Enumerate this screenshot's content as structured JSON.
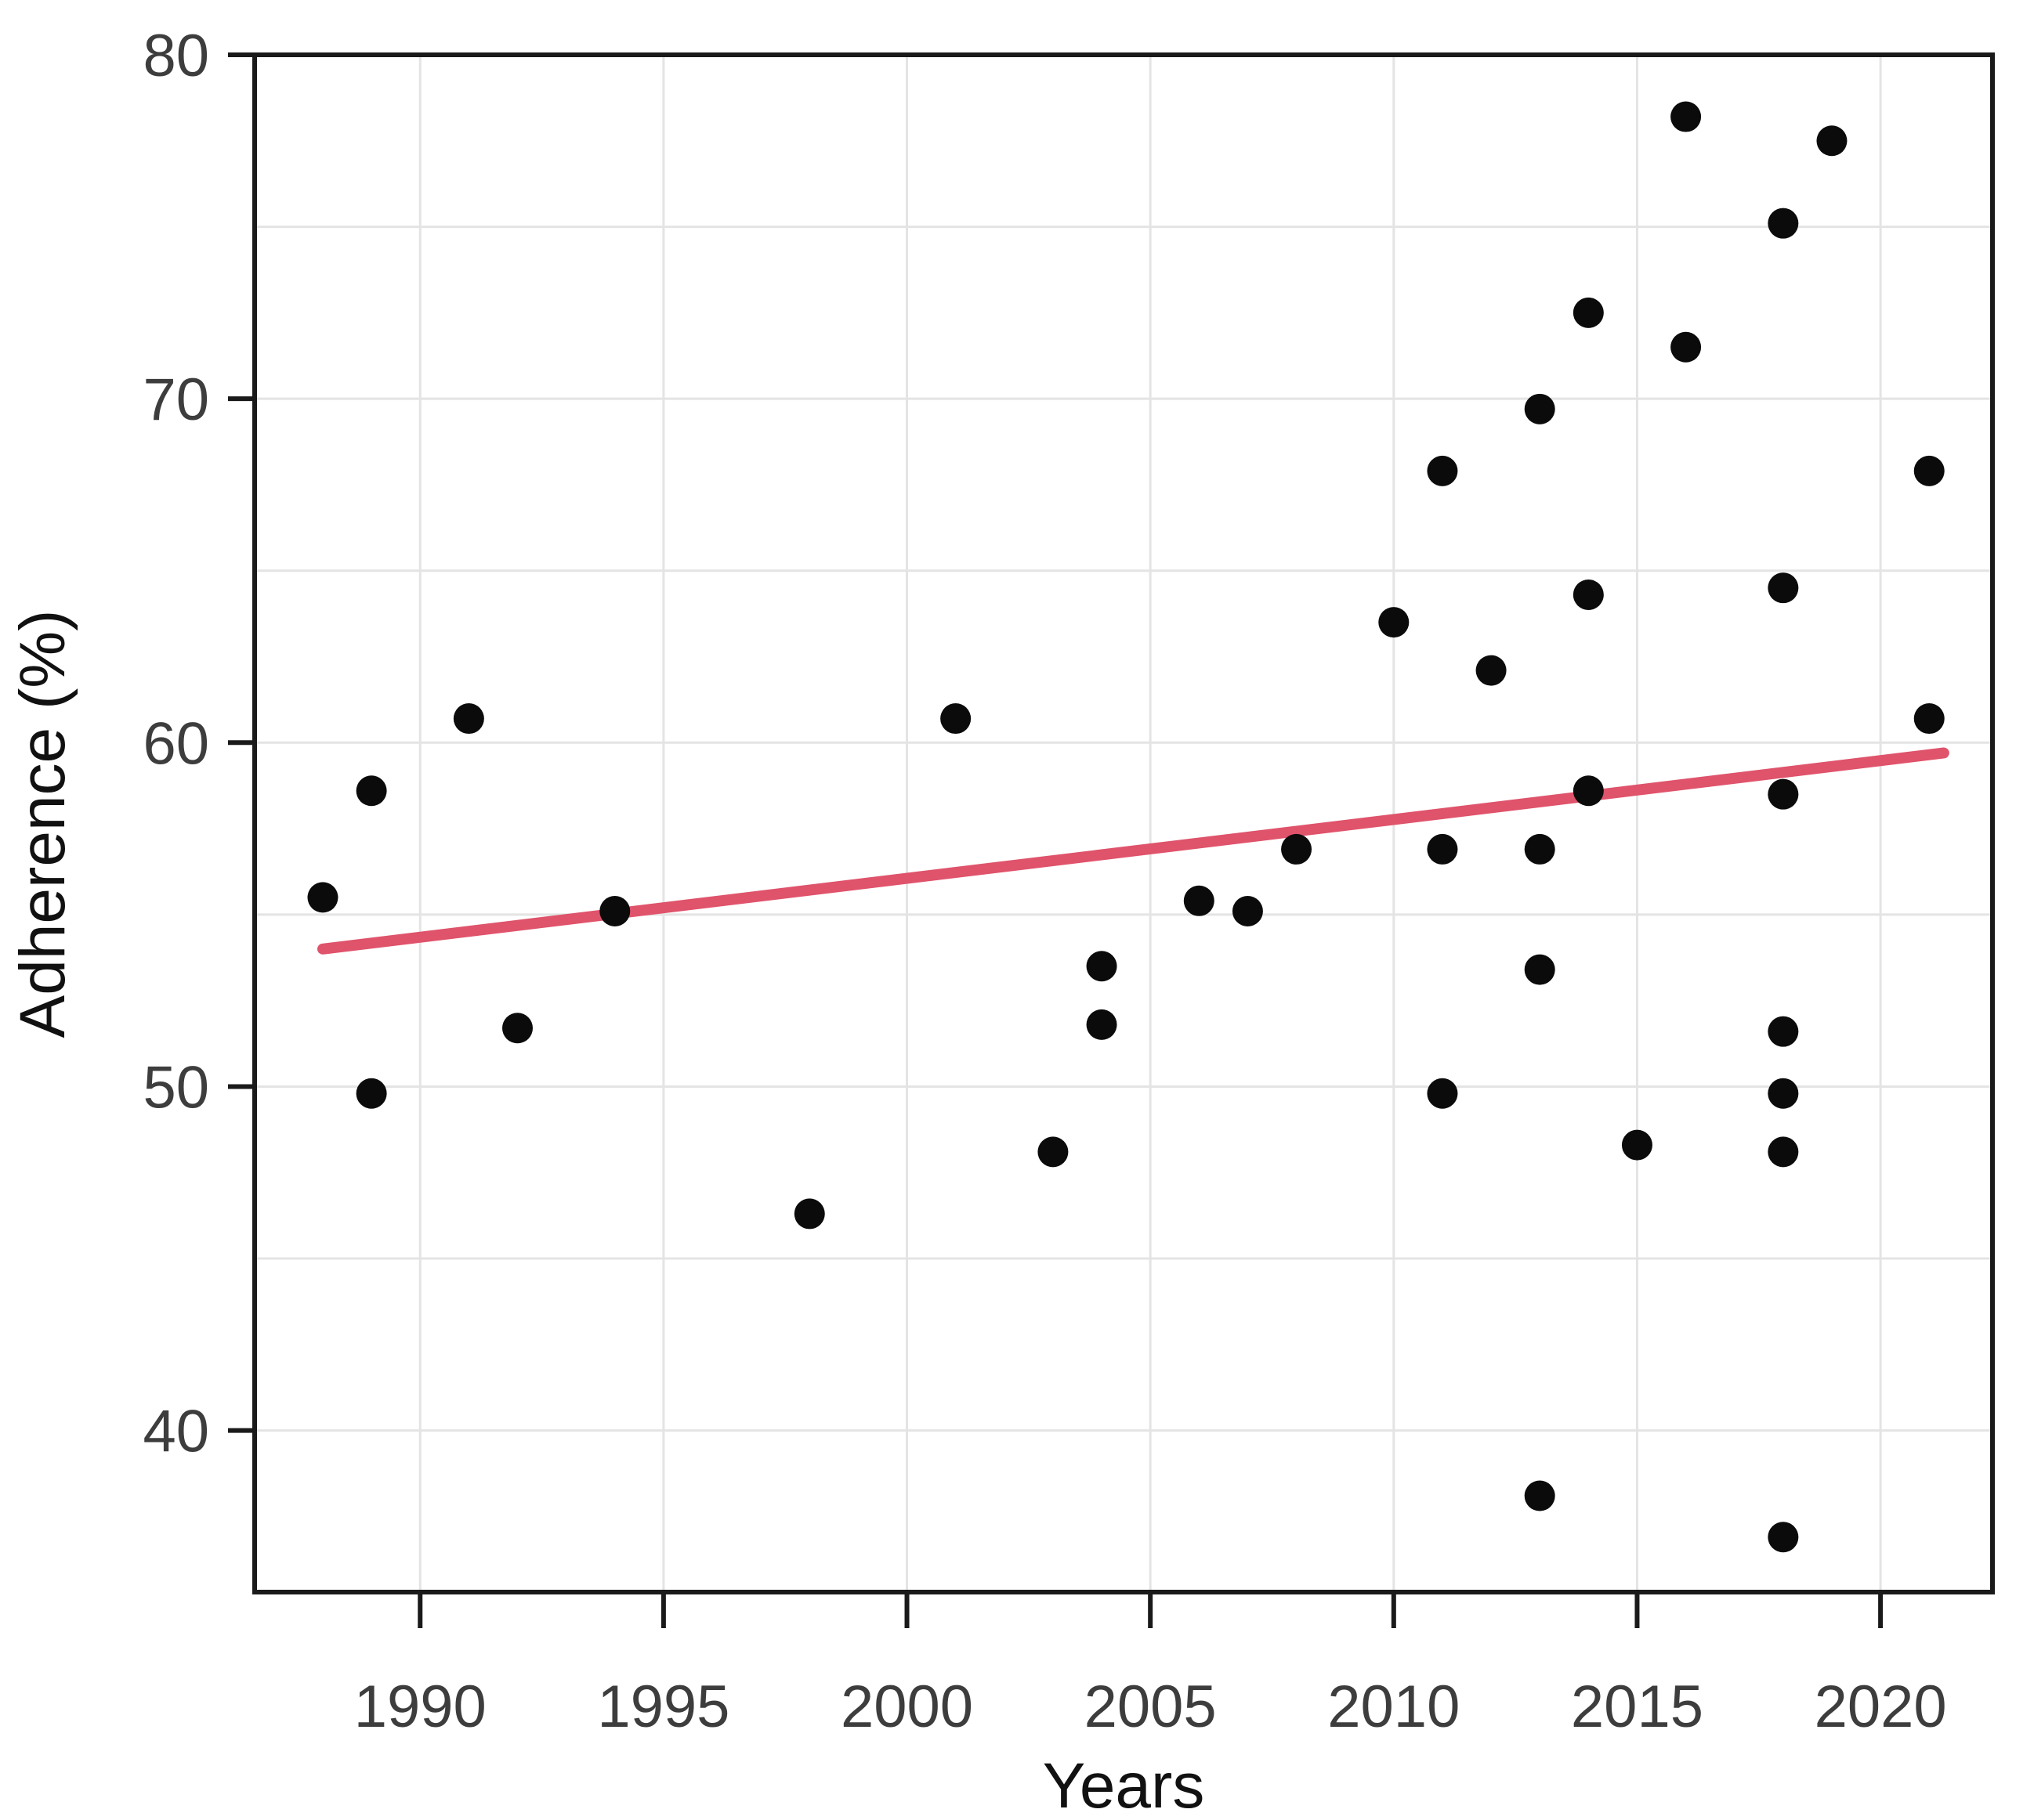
{
  "chart_data": {
    "type": "scatter",
    "title": "",
    "xlabel": "Years",
    "ylabel": "Adherence (%)",
    "x_ticks": [
      1990,
      1995,
      2000,
      2005,
      2010,
      2015,
      2020
    ],
    "y_ticks": [
      40,
      50,
      60,
      70,
      80
    ],
    "x_gridlines": [
      1990,
      1995,
      2000,
      2005,
      2010,
      2015,
      2020
    ],
    "y_gridlines": [
      40,
      45,
      50,
      55,
      60,
      65,
      70,
      75,
      80
    ],
    "xlim": [
      1986.6,
      2022.3
    ],
    "ylim": [
      35.3,
      80.0
    ],
    "grid": true,
    "legend": "none",
    "points": [
      [
        1988,
        55.5
      ],
      [
        1989,
        58.6
      ],
      [
        1989,
        49.8
      ],
      [
        1991,
        60.7
      ],
      [
        1992,
        51.7
      ],
      [
        1994,
        55.1
      ],
      [
        1998,
        46.3
      ],
      [
        2001,
        60.7
      ],
      [
        2003,
        48.1
      ],
      [
        2004,
        53.5
      ],
      [
        2004,
        51.8
      ],
      [
        2006,
        55.4
      ],
      [
        2007,
        55.1
      ],
      [
        2008,
        56.9
      ],
      [
        2010,
        63.5
      ],
      [
        2011,
        67.9
      ],
      [
        2011,
        56.9
      ],
      [
        2011,
        49.8
      ],
      [
        2012,
        62.1
      ],
      [
        2013,
        69.7
      ],
      [
        2013,
        56.9
      ],
      [
        2013,
        53.4
      ],
      [
        2013,
        38.1
      ],
      [
        2014,
        72.5
      ],
      [
        2014,
        64.3
      ],
      [
        2014,
        58.6
      ],
      [
        2015,
        48.3
      ],
      [
        2016,
        78.2
      ],
      [
        2016,
        71.5
      ],
      [
        2018,
        75.1
      ],
      [
        2018,
        64.5
      ],
      [
        2018,
        58.5
      ],
      [
        2018,
        51.6
      ],
      [
        2018,
        49.8
      ],
      [
        2018,
        48.1
      ],
      [
        2018,
        36.9
      ],
      [
        2019,
        77.5
      ],
      [
        2021,
        67.9
      ],
      [
        2021,
        60.7
      ]
    ],
    "trend_line": {
      "x1": 1988.0,
      "y1": 54.0,
      "x2": 2021.3,
      "y2": 59.7
    },
    "colors": {
      "point": "#0b0b0b",
      "trend": "#DF536B",
      "grid": "#e4e4e4",
      "axis": "#1a1a1a",
      "tick_label": "#3d3d3d",
      "title": "#111111",
      "background": "#ffffff"
    }
  }
}
